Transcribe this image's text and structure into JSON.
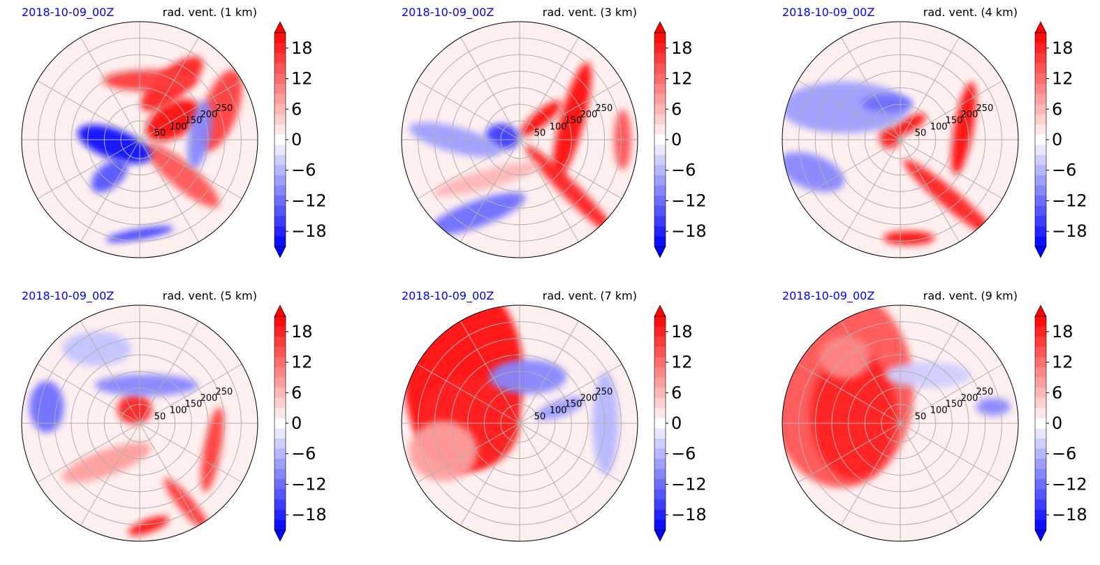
{
  "colors": {
    "positive": "#ff0000",
    "negative": "#0000ff",
    "zero": "#ffffff",
    "date_text": "#0000ff",
    "grid": "#b0b0b0"
  },
  "chart_data": [
    {
      "type": "heatmap",
      "projection": "polar",
      "date": "2018-10-09_00Z",
      "title": "rad. vent. (1 km)",
      "radial_ticks": [
        "50",
        "100",
        "150",
        "200",
        "250"
      ],
      "colorbar": {
        "ticks": [
          "18",
          "12",
          "6",
          "0",
          "−6",
          "−12",
          "−18"
        ],
        "range": [
          -21,
          21
        ],
        "extend": "both",
        "cmap": "bwr"
      },
      "features": [
        {
          "theta": 30,
          "r": 90,
          "w": 70,
          "h": 40,
          "rot": -30,
          "v": 20
        },
        {
          "theta": 60,
          "r": 150,
          "w": 90,
          "h": 35,
          "rot": -40,
          "v": 18
        },
        {
          "theta": 80,
          "r": 140,
          "w": 110,
          "h": 25,
          "rot": 0,
          "v": 16
        },
        {
          "theta": 20,
          "r": 200,
          "w": 40,
          "h": 100,
          "rot": 20,
          "v": 16
        },
        {
          "theta": -40,
          "r": 130,
          "w": 30,
          "h": 110,
          "rot": -50,
          "v": 14
        },
        {
          "theta": 190,
          "r": 60,
          "w": 90,
          "h": 35,
          "rot": 20,
          "v": -20
        },
        {
          "theta": 230,
          "r": 110,
          "w": 50,
          "h": 28,
          "rot": -40,
          "v": -14
        },
        {
          "theta": 270,
          "r": 220,
          "w": 80,
          "h": 12,
          "rot": -10,
          "v": -16
        },
        {
          "theta": 5,
          "r": 140,
          "w": 25,
          "h": 80,
          "rot": 10,
          "v": -10
        }
      ]
    },
    {
      "type": "heatmap",
      "projection": "polar",
      "date": "2018-10-09_00Z",
      "title": "rad. vent. (3 km)",
      "radial_ticks": [
        "50",
        "100",
        "150",
        "200",
        "250"
      ],
      "colorbar": {
        "ticks": [
          "18",
          "12",
          "6",
          "0",
          "−6",
          "−12",
          "−18"
        ],
        "range": [
          -21,
          21
        ],
        "extend": "both",
        "cmap": "bwr"
      },
      "features": [
        {
          "theta": 45,
          "r": 70,
          "w": 60,
          "h": 18,
          "rot": -40,
          "v": 20
        },
        {
          "theta": 20,
          "r": 130,
          "w": 28,
          "h": 140,
          "rot": 15,
          "v": 20
        },
        {
          "theta": -45,
          "r": 170,
          "w": 20,
          "h": 150,
          "rot": -45,
          "v": 18
        },
        {
          "theta": 170,
          "r": 40,
          "w": 40,
          "h": 30,
          "rot": 10,
          "v": -16
        },
        {
          "theta": 180,
          "r": 150,
          "w": 110,
          "h": 30,
          "rot": 15,
          "v": -8
        },
        {
          "theta": 240,
          "r": 200,
          "w": 120,
          "h": 30,
          "rot": -20,
          "v": -12
        },
        {
          "theta": 230,
          "r": 120,
          "w": 130,
          "h": 22,
          "rot": -15,
          "v": 6
        },
        {
          "theta": 0,
          "r": 240,
          "w": 20,
          "h": 70,
          "rot": 0,
          "v": 14
        }
      ]
    },
    {
      "type": "heatmap",
      "projection": "polar",
      "date": "2018-10-09_00Z",
      "title": "rad. vent. (4 km)",
      "radial_ticks": [
        "50",
        "100",
        "150",
        "200",
        "250"
      ],
      "colorbar": {
        "ticks": [
          "18",
          "12",
          "6",
          "0",
          "−6",
          "−12",
          "−18"
        ],
        "range": [
          -21,
          21
        ],
        "extend": "both",
        "cmap": "bwr"
      },
      "features": [
        {
          "theta": 60,
          "r": 40,
          "w": 45,
          "h": 16,
          "rot": -30,
          "v": 20
        },
        {
          "theta": 170,
          "r": 25,
          "w": 25,
          "h": 25,
          "rot": 0,
          "v": 18
        },
        {
          "theta": 10,
          "r": 150,
          "w": 22,
          "h": 110,
          "rot": 10,
          "v": 20
        },
        {
          "theta": -50,
          "r": 180,
          "w": 22,
          "h": 140,
          "rot": -50,
          "v": 18
        },
        {
          "theta": -85,
          "r": 230,
          "w": 60,
          "h": 16,
          "rot": 0,
          "v": 20
        },
        {
          "theta": 150,
          "r": 150,
          "w": 150,
          "h": 60,
          "rot": 0,
          "v": -8
        },
        {
          "theta": 200,
          "r": 220,
          "w": 80,
          "h": 40,
          "rot": 20,
          "v": -10
        },
        {
          "theta": 110,
          "r": 90,
          "w": 60,
          "h": 20,
          "rot": 0,
          "v": -12
        }
      ]
    },
    {
      "type": "heatmap",
      "projection": "polar",
      "date": "2018-10-09_00Z",
      "title": "rad. vent. (5 km)",
      "radial_ticks": [
        "50",
        "100",
        "150",
        "200",
        "250"
      ],
      "colorbar": {
        "ticks": [
          "18",
          "12",
          "6",
          "0",
          "−6",
          "−12",
          "−18"
        ],
        "range": [
          -21,
          21
        ],
        "extend": "both",
        "cmap": "bwr"
      },
      "features": [
        {
          "theta": 110,
          "r": 35,
          "w": 40,
          "h": 35,
          "rot": 0,
          "v": 18
        },
        {
          "theta": -20,
          "r": 180,
          "w": 20,
          "h": 100,
          "rot": 10,
          "v": 16
        },
        {
          "theta": -60,
          "r": 220,
          "w": 18,
          "h": 80,
          "rot": -40,
          "v": 16
        },
        {
          "theta": -85,
          "r": 240,
          "w": 50,
          "h": 15,
          "rot": -20,
          "v": 20
        },
        {
          "theta": 230,
          "r": 120,
          "w": 110,
          "h": 30,
          "rot": -20,
          "v": 8
        },
        {
          "theta": 80,
          "r": 90,
          "w": 120,
          "h": 25,
          "rot": 0,
          "v": -10
        },
        {
          "theta": 170,
          "r": 220,
          "w": 40,
          "h": 60,
          "rot": 0,
          "v": -12
        },
        {
          "theta": 120,
          "r": 200,
          "w": 80,
          "h": 40,
          "rot": 0,
          "v": -5
        }
      ]
    },
    {
      "type": "heatmap",
      "projection": "polar",
      "date": "2018-10-09_00Z",
      "title": "rad. vent. (7 km)",
      "radial_ticks": [
        "50",
        "100",
        "150",
        "200",
        "250"
      ],
      "colorbar": {
        "ticks": [
          "18",
          "12",
          "6",
          "0",
          "−6",
          "−12",
          "−18"
        ],
        "range": [
          -21,
          21
        ],
        "extend": "both",
        "cmap": "bwr"
      },
      "features": [
        {
          "theta": 140,
          "r": 170,
          "w": 140,
          "h": 220,
          "rot": 0,
          "v": 20
        },
        {
          "theta": 180,
          "r": 120,
          "w": 120,
          "h": 110,
          "rot": 0,
          "v": 18
        },
        {
          "theta": 200,
          "r": 190,
          "w": 80,
          "h": 70,
          "rot": 0,
          "v": 8
        },
        {
          "theta": 80,
          "r": 110,
          "w": 90,
          "h": 40,
          "rot": 0,
          "v": -10
        },
        {
          "theta": 20,
          "r": 100,
          "w": 60,
          "h": 20,
          "rot": -20,
          "v": -8
        },
        {
          "theta": 0,
          "r": 200,
          "w": 30,
          "h": 120,
          "rot": 0,
          "v": -6
        }
      ]
    },
    {
      "type": "heatmap",
      "projection": "polar",
      "date": "2018-10-09_00Z",
      "title": "rad. vent. (9 km)",
      "radial_ticks": [
        "50",
        "100",
        "150",
        "200",
        "250"
      ],
      "colorbar": {
        "ticks": [
          "18",
          "12",
          "6",
          "0",
          "−6",
          "−12",
          "−18"
        ],
        "range": [
          -21,
          21
        ],
        "extend": "both",
        "cmap": "bwr"
      },
      "features": [
        {
          "theta": 150,
          "r": 160,
          "w": 170,
          "h": 230,
          "rot": 0,
          "v": 14
        },
        {
          "theta": 170,
          "r": 110,
          "w": 100,
          "h": 150,
          "rot": 0,
          "v": 18
        },
        {
          "theta": 130,
          "r": 200,
          "w": 60,
          "h": 50,
          "rot": 0,
          "v": 10
        },
        {
          "theta": 60,
          "r": 130,
          "w": 100,
          "h": 30,
          "rot": 0,
          "v": -4
        },
        {
          "theta": 10,
          "r": 220,
          "w": 40,
          "h": 20,
          "rot": 0,
          "v": -10
        }
      ]
    }
  ]
}
